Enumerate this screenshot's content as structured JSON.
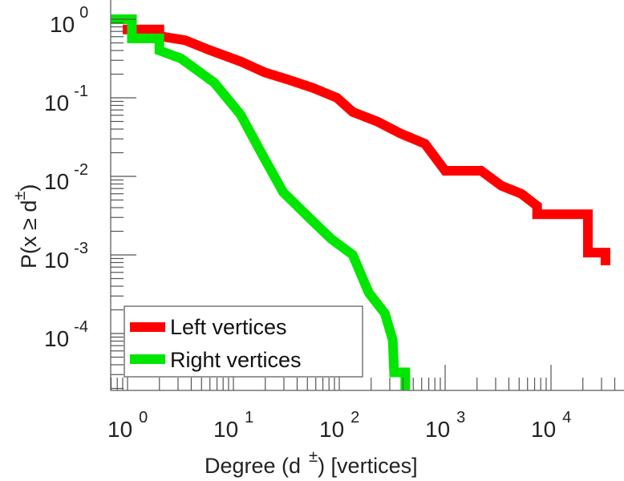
{
  "chart_data": {
    "type": "line",
    "title": "",
    "xlabel": {
      "main": "Degree (d",
      "sup": "±",
      "tail": ") [vertices]"
    },
    "ylabel": {
      "main": "P(x ≥ d",
      "sup": "±",
      "tail": ")"
    },
    "xscale": "log",
    "yscale": "log",
    "xlim": [
      0.69,
      49000
    ],
    "ylim": [
      1.85e-05,
      1.55
    ],
    "grid": false,
    "legend_placement": "bottom-left",
    "x_ticks": [
      {
        "value": 1,
        "base": "10",
        "exp": "0"
      },
      {
        "value": 10,
        "base": "10",
        "exp": "1"
      },
      {
        "value": 100,
        "base": "10",
        "exp": "2"
      },
      {
        "value": 1000,
        "base": "10",
        "exp": "3"
      },
      {
        "value": 10000,
        "base": "10",
        "exp": "4"
      }
    ],
    "y_ticks": [
      {
        "value": 1,
        "base": "10",
        "exp": "0"
      },
      {
        "value": 0.1,
        "base": "10",
        "exp": "-1"
      },
      {
        "value": 0.01,
        "base": "10",
        "exp": "-2"
      },
      {
        "value": 0.001,
        "base": "10",
        "exp": "-3"
      },
      {
        "value": 0.0001,
        "base": "10",
        "exp": "-4"
      }
    ],
    "series": [
      {
        "name": "Left vertices",
        "color": "#ff0000",
        "points": [
          [
            1,
            0.74
          ],
          [
            2,
            0.74
          ],
          [
            2,
            0.61
          ],
          [
            3.5,
            0.54
          ],
          [
            5.8,
            0.41
          ],
          [
            11.7,
            0.29
          ],
          [
            19.8,
            0.21
          ],
          [
            33,
            0.17
          ],
          [
            56,
            0.134
          ],
          [
            95,
            0.1
          ],
          [
            134,
            0.066
          ],
          [
            228,
            0.05
          ],
          [
            381,
            0.035
          ],
          [
            644,
            0.026
          ],
          [
            1000,
            0.0118
          ],
          [
            2190,
            0.0118
          ],
          [
            3400,
            0.0076
          ],
          [
            5250,
            0.006
          ],
          [
            7400,
            0.0042
          ],
          [
            7400,
            0.0033
          ],
          [
            22300,
            0.0033
          ],
          [
            22300,
            0.00107
          ],
          [
            32700,
            0.00107
          ],
          [
            32700,
            0.00085
          ]
        ]
      },
      {
        "name": "Right vertices",
        "color": "#00e600",
        "points": [
          [
            0.69,
            1
          ],
          [
            1.1,
            1
          ],
          [
            1.1,
            0.57
          ],
          [
            2,
            0.57
          ],
          [
            2,
            0.4
          ],
          [
            3.2,
            0.316
          ],
          [
            6.6,
            0.156
          ],
          [
            11.7,
            0.061
          ],
          [
            18.7,
            0.019
          ],
          [
            29.5,
            0.0063
          ],
          [
            53,
            0.0029
          ],
          [
            84,
            0.0016
          ],
          [
            134,
            0.001
          ],
          [
            190,
            0.00033
          ],
          [
            270,
            0.00018
          ],
          [
            320,
            8.2e-05
          ],
          [
            330,
            3.2e-05
          ],
          [
            420,
            3.2e-05
          ],
          [
            420,
            1e-05
          ]
        ]
      }
    ]
  }
}
